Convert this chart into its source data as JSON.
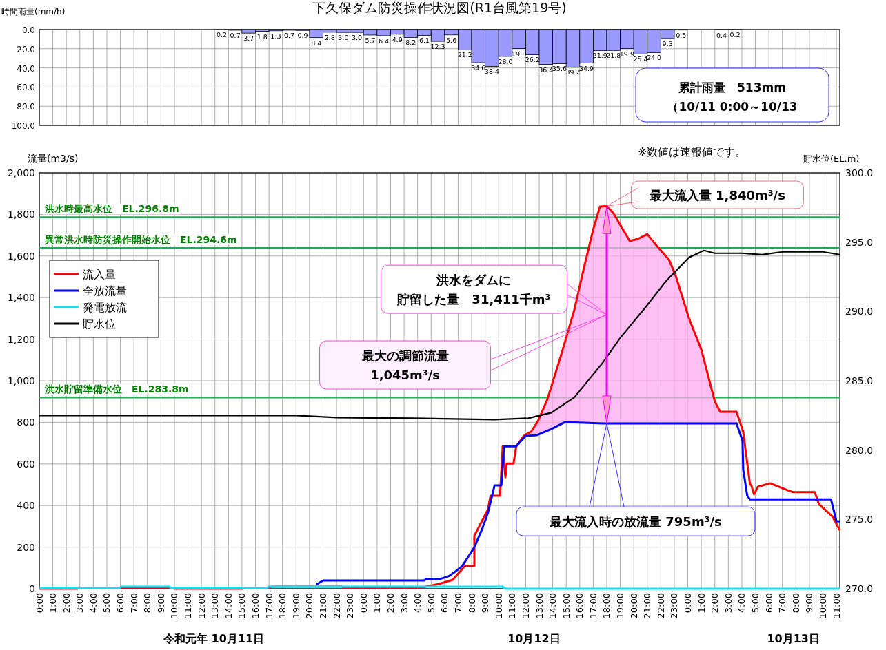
{
  "chart_data": [
    {
      "type": "bar",
      "title": "下久保ダム防災操作状況図(R1台風第19号)",
      "ylabel": "時間雨量(mm/h)",
      "color": "#9999ff",
      "x": [
        "--10-11T13:30",
        "--10-11T14:30",
        "--10-11T15:30",
        "--10-11T16:30",
        "--10-11T17:30",
        "--10-11T18:30",
        "--10-11T19:30",
        "--10-11T20:30",
        "--10-11T21:30",
        "--10-11T22:30",
        "--10-11T23:30",
        "--10-12T00:30",
        "--10-12T01:30",
        "--10-12T02:30",
        "--10-12T03:30",
        "--10-12T04:30",
        "--10-12T05:30",
        "--10-12T06:30",
        "--10-12T07:30",
        "--10-12T08:30",
        "--10-12T09:30",
        "--10-12T10:30",
        "--10-12T11:30",
        "--10-12T12:30",
        "--10-12T13:30",
        "--10-12T14:30",
        "--10-12T15:30",
        "--10-12T16:30",
        "--10-12T17:30",
        "--10-12T18:30",
        "--10-12T19:30",
        "--10-12T20:30",
        "--10-12T21:30",
        "--10-12T22:30",
        "--10-12T23:30",
        "--10-13T02:30",
        "--10-13T03:30"
      ],
      "values": [
        0.2,
        0.7,
        3.7,
        1.8,
        1.3,
        0.7,
        0.9,
        8.4,
        2.8,
        3.0,
        3.0,
        5.7,
        6.4,
        4.9,
        8.2,
        6.1,
        12.3,
        5.6,
        21.2,
        34.6,
        38.4,
        28.0,
        19.8,
        26.2,
        36.4,
        35.6,
        39.2,
        34.9,
        21.9,
        21.8,
        19.9,
        25.4,
        24.0,
        9.3,
        0.5,
        0.4,
        0.2
      ],
      "value_labels": [
        "0.2",
        "0.7",
        "3.7",
        "1.8",
        "1.3",
        "0.7",
        "0.9",
        "8.4",
        "2.8",
        "3.0",
        "3.0",
        "5.7",
        "6.4",
        "4.9",
        "8.2",
        "6.1",
        "12.3",
        "5.6",
        "21.2",
        "34.6",
        "38.4",
        "28.0",
        "19.8",
        "26.2",
        "36.4",
        "35.6",
        "39.2",
        "34.9",
        "21.9",
        "21.8",
        "19.9",
        "25.4",
        "24.0",
        "9.3",
        "0.5",
        "0.4",
        "0.2"
      ],
      "xlim": [
        "--10-11T00:00",
        "--10-13T11:15"
      ],
      "xticks": [
        "--10-11T00:00",
        "--10-11T01:00",
        "--10-11T02:00",
        "--10-11T03:00",
        "--10-11T04:00",
        "--10-11T05:00",
        "--10-11T06:00",
        "--10-11T07:00",
        "--10-11T08:00",
        "--10-11T09:00",
        "--10-11T10:00",
        "--10-11T11:00",
        "--10-11T12:00",
        "--10-11T13:00",
        "--10-11T14:00",
        "--10-11T15:00",
        "--10-11T16:00",
        "--10-11T17:00",
        "--10-11T18:00",
        "--10-11T19:00",
        "--10-11T20:00",
        "--10-11T21:00",
        "--10-11T22:00",
        "--10-11T23:00",
        "--10-12T00:00",
        "--10-12T01:00",
        "--10-12T02:00",
        "--10-12T03:00",
        "--10-12T04:00",
        "--10-12T05:00",
        "--10-12T06:00",
        "--10-12T07:00",
        "--10-12T08:00",
        "--10-12T09:00",
        "--10-12T10:00",
        "--10-12T11:00",
        "--10-12T12:00",
        "--10-12T13:00",
        "--10-12T14:00",
        "--10-12T15:00",
        "--10-12T16:00",
        "--10-12T17:00",
        "--10-12T18:00",
        "--10-12T19:00",
        "--10-12T20:00",
        "--10-12T21:00",
        "--10-12T22:00",
        "--10-12T23:00",
        "--10-13T00:00",
        "--10-13T01:00",
        "--10-13T02:00",
        "--10-13T03:00",
        "--10-13T04:00",
        "--10-13T05:00",
        "--10-13T06:00",
        "--10-13T07:00",
        "--10-13T08:00",
        "--10-13T09:00",
        "--10-13T10:00",
        "--10-13T11:00"
      ],
      "ylim": [
        100,
        0
      ],
      "yticks": [
        {
          "value": 0,
          "label": "0.0"
        },
        {
          "value": 20,
          "label": "20.0"
        },
        {
          "value": 40,
          "label": "40.0"
        },
        {
          "value": 60,
          "label": "60.0"
        },
        {
          "value": 80,
          "label": "80.0"
        },
        {
          "value": 100,
          "label": "100.0"
        }
      ],
      "grid": true,
      "tick_labels": "y",
      "annotations": [
        "累計雨量　513mm\n（10/11 0:00～10/13"
      ]
    },
    {
      "type": "line",
      "ylabel": "流量(m3/s)",
      "y2label": "貯水位(EL.m)",
      "grid": true,
      "legend": "top left",
      "xlim": [
        "--10-11T00:00",
        "--10-13T11:15"
      ],
      "xticks": [
        {
          "value": "--10-11T00:00",
          "label": "0:00"
        },
        {
          "value": "--10-11T01:00",
          "label": "1:00"
        },
        {
          "value": "--10-11T02:00",
          "label": "2:00"
        },
        {
          "value": "--10-11T03:00",
          "label": "3:00"
        },
        {
          "value": "--10-11T04:00",
          "label": "4:00"
        },
        {
          "value": "--10-11T05:00",
          "label": "5:00"
        },
        {
          "value": "--10-11T06:00",
          "label": "6:00"
        },
        {
          "value": "--10-11T07:00",
          "label": "7:00"
        },
        {
          "value": "--10-11T08:00",
          "label": "8:00"
        },
        {
          "value": "--10-11T09:00",
          "label": "9:00"
        },
        {
          "value": "--10-11T10:00",
          "label": "10:00"
        },
        {
          "value": "--10-11T11:00",
          "label": "11:00"
        },
        {
          "value": "--10-11T12:00",
          "label": "12:00"
        },
        {
          "value": "--10-11T13:00",
          "label": "13:00"
        },
        {
          "value": "--10-11T14:00",
          "label": "14:00"
        },
        {
          "value": "--10-11T15:00",
          "label": "15:00"
        },
        {
          "value": "--10-11T16:00",
          "label": "16:00"
        },
        {
          "value": "--10-11T17:00",
          "label": "17:00"
        },
        {
          "value": "--10-11T18:00",
          "label": "18:00"
        },
        {
          "value": "--10-11T19:00",
          "label": "19:00"
        },
        {
          "value": "--10-11T20:00",
          "label": "20:00"
        },
        {
          "value": "--10-11T21:00",
          "label": "21:00"
        },
        {
          "value": "--10-11T22:00",
          "label": "22:00"
        },
        {
          "value": "--10-11T23:00",
          "label": "23:00"
        },
        {
          "value": "--10-12T00:00",
          "label": "0:00"
        },
        {
          "value": "--10-12T01:00",
          "label": "1:00"
        },
        {
          "value": "--10-12T02:00",
          "label": "2:00"
        },
        {
          "value": "--10-12T03:00",
          "label": "3:00"
        },
        {
          "value": "--10-12T04:00",
          "label": "4:00"
        },
        {
          "value": "--10-12T05:00",
          "label": "5:00"
        },
        {
          "value": "--10-12T06:00",
          "label": "6:00"
        },
        {
          "value": "--10-12T07:00",
          "label": "7:00"
        },
        {
          "value": "--10-12T08:00",
          "label": "8:00"
        },
        {
          "value": "--10-12T09:00",
          "label": "9:00"
        },
        {
          "value": "--10-12T10:00",
          "label": "10:00"
        },
        {
          "value": "--10-12T11:00",
          "label": "11:00"
        },
        {
          "value": "--10-12T12:00",
          "label": "12:00"
        },
        {
          "value": "--10-12T13:00",
          "label": "13:00"
        },
        {
          "value": "--10-12T14:00",
          "label": "14:00"
        },
        {
          "value": "--10-12T15:00",
          "label": "15:00"
        },
        {
          "value": "--10-12T16:00",
          "label": "16:00"
        },
        {
          "value": "--10-12T17:00",
          "label": "17:00"
        },
        {
          "value": "--10-12T18:00",
          "label": "18:00"
        },
        {
          "value": "--10-12T19:00",
          "label": "19:00"
        },
        {
          "value": "--10-12T20:00",
          "label": "20:00"
        },
        {
          "value": "--10-12T21:00",
          "label": "21:00"
        },
        {
          "value": "--10-12T22:00",
          "label": "22:00"
        },
        {
          "value": "--10-12T23:00",
          "label": "23:00"
        },
        {
          "value": "--10-13T00:00",
          "label": "0:00"
        },
        {
          "value": "--10-13T01:00",
          "label": "1:00"
        },
        {
          "value": "--10-13T02:00",
          "label": "2:00"
        },
        {
          "value": "--10-13T03:00",
          "label": "3:00"
        },
        {
          "value": "--10-13T04:00",
          "label": "4:00"
        },
        {
          "value": "--10-13T05:00",
          "label": "5:00"
        },
        {
          "value": "--10-13T06:00",
          "label": "6:00"
        },
        {
          "value": "--10-13T07:00",
          "label": "7:00"
        },
        {
          "value": "--10-13T08:00",
          "label": "8:00"
        },
        {
          "value": "--10-13T09:00",
          "label": "9:00"
        },
        {
          "value": "--10-13T10:00",
          "label": "10:00"
        },
        {
          "value": "--10-13T11:00",
          "label": "11:00"
        }
      ],
      "ylim": [
        0,
        2000
      ],
      "yticks": [
        0,
        200,
        400,
        600,
        800,
        {
          "value": 1000,
          "label": "1,000"
        },
        {
          "value": 1200,
          "label": "1,200"
        },
        {
          "value": 1400,
          "label": "1,400"
        },
        {
          "value": 1600,
          "label": "1,600"
        },
        {
          "value": 1800,
          "label": "1,800"
        },
        {
          "value": 2000,
          "label": "2,000"
        }
      ],
      "y2lim": [
        270,
        300
      ],
      "y2ticks": [
        {
          "value": 270,
          "label": "270.0"
        },
        {
          "value": 275,
          "label": "275.0"
        },
        {
          "value": 280,
          "label": "280.0"
        },
        {
          "value": 285,
          "label": "285.0"
        },
        {
          "value": 290,
          "label": "290.0"
        },
        {
          "value": 295,
          "label": "295.0"
        },
        {
          "value": 300,
          "label": "300.0"
        }
      ],
      "ref_lines": [
        {
          "axis": "y2",
          "value": 296.8,
          "label": "洪水時最高水位　EL.296.8m",
          "color": "#22aa55"
        },
        {
          "axis": "y2",
          "value": 294.6,
          "label": "異常洪水時防災操作開始水位　EL.294.6m",
          "color": "#22aa55"
        },
        {
          "axis": "y2",
          "value": 283.8,
          "label": "洪水貯留準備水位　EL.283.8m",
          "color": "#22aa55"
        }
      ],
      "series": [
        {
          "name": "流入量",
          "color": "#ff0000",
          "x": [
            "--10-11T00:00",
            "--10-11T02:48",
            "--10-11T03:00",
            "--10-11T05:54",
            "--10-11T06:06",
            "--10-11T09:48",
            "--10-11T10:00",
            "--10-11T15:00",
            "--10-11T15:12",
            "--10-11T17:00",
            "--10-11T17:12",
            "--10-11T22:24",
            "--10-11T22:36",
            "--10-12T04:00",
            "--10-12T04:36",
            "--10-12T05:36",
            "--10-12T06:36",
            "--10-12T07:30",
            "--10-12T08:12",
            "--10-12T08:12",
            "--10-12T09:12",
            "--10-12T09:24",
            "--10-12T10:06",
            "--10-12T10:18",
            "--10-12T10:30",
            "--10-12T10:36",
            "--10-12T11:06",
            "--10-12T11:18",
            "--10-12T11:54",
            "--10-12T12:24",
            "--10-12T12:54",
            "--10-12T13:36",
            "--10-12T14:36",
            "--10-12T15:36",
            "--10-12T16:18",
            "--10-12T17:00",
            "--10-12T17:30",
            "--10-12T18:00",
            "--10-12T18:30",
            "--10-12T19:42",
            "--10-12T20:18",
            "--10-12T21:00",
            "--10-12T21:42",
            "--10-12T22:36",
            "--10-12T23:06",
            "--10-13T00:06",
            "--10-13T01:00",
            "--10-13T02:00",
            "--10-13T02:24",
            "--10-13T03:36",
            "--10-13T04:06",
            "--10-13T04:36",
            "--10-13T04:42",
            "--10-13T04:54",
            "--10-13T05:12",
            "--10-13T06:06",
            "--10-13T07:24",
            "--10-13T07:48",
            "--10-13T09:24",
            "--10-13T09:42",
            "--10-13T10:42",
            "--10-13T11:15"
          ],
          "values": [
            0,
            0,
            5,
            5,
            3,
            3,
            0,
            0,
            5,
            5,
            10,
            10,
            2,
            2,
            10,
            23,
            43,
            109,
            109,
            255,
            380,
            447,
            447,
            685,
            536,
            602,
            602,
            685,
            738,
            755,
            805,
            910,
            1119,
            1341,
            1540,
            1728,
            1838,
            1840,
            1805,
            1672,
            1682,
            1705,
            1649,
            1583,
            1506,
            1298,
            1150,
            900,
            851,
            851,
            755,
            503,
            497,
            454,
            490,
            507,
            473,
            464,
            464,
            407,
            348,
            281
          ],
          "lower": [
            null,
            null,
            null,
            null,
            null,
            null,
            null,
            null,
            null,
            null,
            null,
            null,
            null,
            null,
            null,
            null,
            null,
            null,
            null,
            null,
            null,
            null,
            null,
            null,
            null,
            null,
            null,
            null,
            null,
            736,
            740,
            762,
            792,
            795,
            795,
            795,
            795,
            795,
            795,
            795,
            795,
            795,
            795,
            795,
            795,
            795,
            795,
            795,
            795,
            795,
            null,
            null,
            null,
            null,
            null,
            null,
            null,
            null,
            null,
            null,
            null,
            null
          ],
          "upper": [
            null,
            null,
            null,
            null,
            null,
            null,
            null,
            null,
            null,
            null,
            null,
            null,
            null,
            null,
            null,
            null,
            null,
            null,
            null,
            null,
            null,
            null,
            null,
            null,
            null,
            null,
            null,
            null,
            null,
            755,
            805,
            910,
            1119,
            1341,
            1540,
            1728,
            1838,
            1840,
            1805,
            1672,
            1682,
            1705,
            1649,
            1583,
            1506,
            1298,
            1150,
            900,
            851,
            851,
            null,
            null,
            null,
            null,
            null,
            null,
            null,
            null,
            null,
            null,
            null,
            null
          ]
        },
        {
          "name": "全放流量",
          "color": "#0000ff",
          "x": [
            "--10-11T20:30",
            "--10-11T21:00",
            "--10-12T04:30",
            "--10-12T04:36",
            "--10-12T05:36",
            "--10-12T06:18",
            "--10-12T06:48",
            "--10-12T07:18",
            "--10-12T07:42",
            "--10-12T08:12",
            "--10-12T08:48",
            "--10-12T09:12",
            "--10-12T09:42",
            "--10-12T10:12",
            "--10-12T10:24",
            "--10-12T11:18",
            "--10-12T12:00",
            "--10-12T12:48",
            "--10-12T13:54",
            "--10-12T14:54",
            "--10-12T17:42",
            "--10-12T21:00",
            "--10-13T03:36",
            "--10-13T04:03",
            "--10-13T04:06",
            "--10-13T04:24",
            "--10-13T04:36",
            "--10-13T10:36",
            "--10-13T11:00",
            "--10-13T11:15"
          ],
          "values": [
            20,
            40,
            40,
            46,
            46,
            60,
            83,
            109,
            149,
            199,
            291,
            364,
            497,
            497,
            685,
            685,
            735,
            738,
            768,
            801,
            795,
            795,
            795,
            712,
            573,
            447,
            430,
            430,
            324,
            324
          ]
        },
        {
          "name": "発電放流",
          "color": "#00e5ff",
          "x": [
            "--10-11T00:00",
            "--10-11T05:54",
            "--10-11T06:06",
            "--10-11T09:36",
            "--10-11T09:48",
            "--10-11T16:48",
            "--10-11T17:00",
            "--10-12T10:18",
            "--10-12T10:30",
            "--10-13T11:15"
          ],
          "values": [
            3,
            3,
            10,
            10,
            3,
            3,
            10,
            10,
            0,
            0
          ]
        },
        {
          "name": "貯水位",
          "color": "#000000",
          "axis": "y2",
          "x": [
            "--10-11T00:00",
            "--10-11T10:00",
            "--10-11T19:00",
            "--10-11T22:00",
            "--10-12T03:42",
            "--10-12T09:42",
            "--10-12T12:12",
            "--10-12T13:54",
            "--10-12T15:36",
            "--10-12T17:42",
            "--10-12T19:00",
            "--10-12T20:42",
            "--10-12T22:24",
            "--10-13T00:06",
            "--10-13T01:12",
            "--10-13T02:00",
            "--10-13T04:00",
            "--10-13T05:30",
            "--10-13T07:00",
            "--10-13T10:00",
            "--10-13T11:15"
          ],
          "values": [
            282.5,
            282.5,
            282.5,
            282.35,
            282.3,
            282.2,
            282.3,
            282.7,
            283.8,
            286.3,
            288.1,
            290.1,
            292.2,
            293.9,
            294.4,
            294.2,
            294.2,
            294.1,
            294.3,
            294.3,
            294.1
          ]
        }
      ],
      "annotations": [
        {
          "text": "最大流入量 1,840m³/s",
          "x": "--10-12T18:00",
          "y": 1840
        },
        "洪水をダムに貯留した量　31,411千m³",
        "最大の調節流量\n1,045m³/s",
        {
          "text": "最大流入時の放流量 795m³/s",
          "x": "--10-12T18:00",
          "y": 795
        },
        "※数値は速報値です。",
        "令和元年 10月11日",
        "10月12日",
        "10月13日"
      ]
    }
  ]
}
